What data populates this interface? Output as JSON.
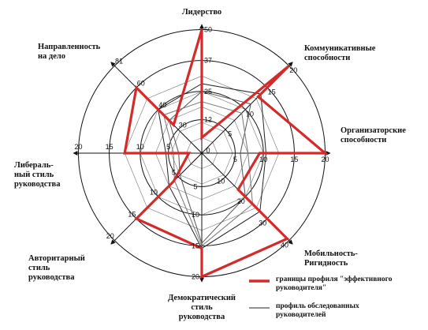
{
  "chart_data": {
    "type": "radar",
    "axes": [
      {
        "label": [
          "Лидерство"
        ],
        "ticks": [
          {
            "value": 50,
            "text": "50"
          },
          {
            "value": 37,
            "text": "37"
          },
          {
            "value": 25,
            "text": "25"
          },
          {
            "value": 12,
            "text": "12"
          },
          {
            "value": 0,
            "text": "0"
          }
        ]
      },
      {
        "label": [
          "Коммуникативные",
          "способности"
        ],
        "ticks": [
          {
            "value": 20,
            "text": "20"
          },
          {
            "value": 15,
            "text": "15"
          },
          {
            "value": 10,
            "text": "10"
          },
          {
            "value": 5,
            "text": "5"
          }
        ]
      },
      {
        "label": [
          "Организаторские",
          "способности"
        ],
        "ticks": [
          {
            "value": 20,
            "text": "20"
          },
          {
            "value": 15,
            "text": "15"
          },
          {
            "value": 10,
            "text": "10"
          },
          {
            "value": 5,
            "text": "5"
          }
        ]
      },
      {
        "label": [
          "Мобильность-",
          "Ригидность"
        ],
        "ticks": [
          {
            "value": 40,
            "text": "40"
          },
          {
            "value": 30,
            "text": "30"
          },
          {
            "value": 20,
            "text": "20"
          },
          {
            "value": 10,
            "text": "10"
          }
        ]
      },
      {
        "label": [
          "Демократический",
          "стиль",
          "руководства"
        ],
        "ticks": [
          {
            "value": 20,
            "text": "20"
          },
          {
            "value": 15,
            "text": "15"
          },
          {
            "value": 10,
            "text": "10"
          },
          {
            "value": 5,
            "text": "5"
          }
        ]
      },
      {
        "label": [
          "Авторитарный",
          "стиль",
          "руководства"
        ],
        "ticks": [
          {
            "value": 20,
            "text": "20"
          },
          {
            "value": 15,
            "text": "15"
          },
          {
            "value": 10,
            "text": "10"
          },
          {
            "value": 5,
            "text": "5"
          }
        ]
      },
      {
        "label": [
          "Либераль-",
          "ный стиль",
          "руководства"
        ],
        "ticks": [
          {
            "value": 20,
            "text": "20"
          },
          {
            "value": 15,
            "text": "15"
          },
          {
            "value": 10,
            "text": "10"
          },
          {
            "value": 5,
            "text": "5"
          }
        ]
      },
      {
        "label": [
          "Направленность",
          "на дело"
        ],
        "ticks": [
          {
            "value": 81,
            "text": "81"
          },
          {
            "value": 60,
            "text": "60"
          },
          {
            "value": 40,
            "text": "40"
          },
          {
            "value": 30,
            "text": "30"
          }
        ]
      }
    ],
    "series": [
      {
        "name": "границы профиля \"эффективного руководителя\"",
        "color": "#d42a2a",
        "closed": true,
        "points": [
          [
            0,
            0.96
          ],
          [
            0,
            0.12
          ],
          [
            1,
            0.96
          ],
          [
            1,
            0.62
          ],
          [
            2,
            0.96
          ],
          [
            2,
            0.45
          ],
          [
            3,
            0.4
          ],
          [
            3,
            0.94
          ],
          [
            4,
            0.96
          ],
          [
            4,
            0.74
          ],
          [
            5,
            0.72
          ],
          [
            5,
            0.31
          ],
          [
            6,
            0.1
          ],
          [
            6,
            0.6
          ],
          [
            7,
            0.72
          ],
          [
            7,
            0.31
          ]
        ]
      },
      {
        "name": "профиль обследованных руководителей",
        "color": "#222222",
        "closed": true,
        "points": [
          [
            0,
            0.54
          ],
          [
            1,
            0.65
          ],
          [
            2,
            0.5
          ],
          [
            3,
            0.64
          ],
          [
            4,
            0.74
          ],
          [
            5,
            0.36
          ],
          [
            6,
            0.28
          ],
          [
            7,
            0.48
          ]
        ]
      },
      {
        "name": "",
        "color": "#555555",
        "closed": true,
        "points": [
          [
            0,
            0.48
          ],
          [
            1,
            0.54
          ],
          [
            2,
            0.3
          ],
          [
            3,
            0.48
          ],
          [
            4,
            0.7
          ],
          [
            5,
            0.24
          ],
          [
            6,
            0.18
          ],
          [
            7,
            0.36
          ]
        ]
      },
      {
        "name": "",
        "color": "#777777",
        "closed": true,
        "points": [
          [
            0,
            0.4
          ],
          [
            1,
            0.44
          ],
          [
            2,
            0.36
          ],
          [
            3,
            0.56
          ],
          [
            4,
            0.72
          ],
          [
            5,
            0.3
          ],
          [
            6,
            0.22
          ],
          [
            7,
            0.42
          ]
        ]
      }
    ],
    "legend": {
      "placement": "bottom-right",
      "items": [
        {
          "label": [
            "границы профиля \"эффективного",
            "руководителя\""
          ],
          "color": "#d42a2a",
          "weight": "thick"
        },
        {
          "label": [
            "профиль обследованных",
            "руководителей"
          ],
          "color": "#222222",
          "weight": "thin"
        }
      ]
    }
  }
}
